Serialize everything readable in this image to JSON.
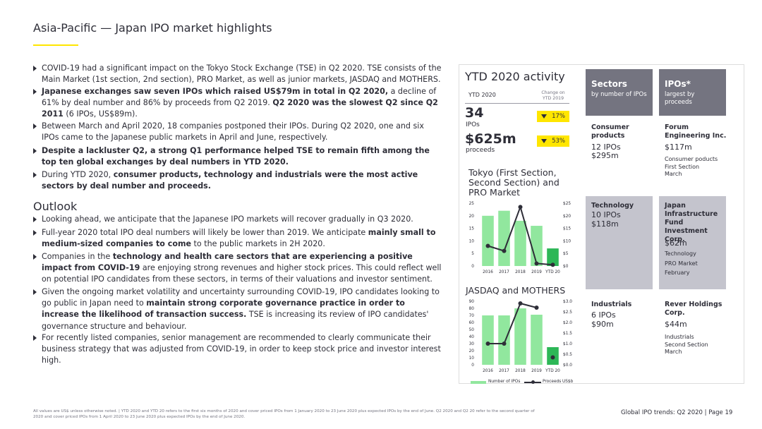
{
  "title": "Asia-Pacific — Japan IPO market highlights",
  "bullets": [
    [
      {
        "t": "COVID-19 had a significant impact on the Tokyo Stock Exchange (TSE) in Q2 2020. TSE consists of the Main Market (1st section, 2nd section), PRO Market, as well as junior markets, JASDAQ and MOTHERS.",
        "b": false
      }
    ],
    [
      {
        "t": "Japanese exchanges saw seven IPOs which raised US$79m in total in Q2 2020,",
        "b": true
      },
      {
        "t": " a decline of 61% by deal number and 86% by proceeds from Q2 2019. ",
        "b": false
      },
      {
        "t": "Q2 2020 was the slowest Q2 since Q2 2011",
        "b": true
      },
      {
        "t": " (6 IPOs, US$89m).",
        "b": false
      }
    ],
    [
      {
        "t": "Between March and April 2020, 18 companies postponed their IPOs. During Q2 2020, one and six IPOs came to the Japanese public markets in April and June, respectively.",
        "b": false
      }
    ],
    [
      {
        "t": "Despite a lackluster Q2, a strong Q1 performance helped TSE to remain fifth among the top ten global exchanges by deal numbers in YTD 2020.",
        "b": true
      }
    ],
    [
      {
        "t": "During YTD 2020, ",
        "b": false
      },
      {
        "t": "consumer products, technology and industrials were the most active sectors by deal number and proceeds.",
        "b": true
      }
    ]
  ],
  "outlook_title": "Outlook",
  "outlook": [
    [
      {
        "t": "Looking ahead, we anticipate that the Japanese IPO markets will recover gradually in Q3 2020.",
        "b": false
      }
    ],
    [
      {
        "t": "Full-year 2020 total IPO deal numbers will likely be lower than 2019. We anticipate ",
        "b": false
      },
      {
        "t": "mainly small to medium-sized companies to come",
        "b": true
      },
      {
        "t": " to the public markets in 2H 2020.",
        "b": false
      }
    ],
    [
      {
        "t": "Companies in the ",
        "b": false
      },
      {
        "t": "technology and health care sectors that are experiencing a positive impact from COVID-19",
        "b": true
      },
      {
        "t": " are enjoying strong revenues and higher stock prices. This could reflect well on potential IPO candidates from these sectors,  in terms of their valuations and investor sentiment.",
        "b": false
      }
    ],
    [
      {
        "t": "Given the ongoing market volatility and uncertainty surrounding COVID-19, IPO candidates looking to go public in Japan need to ",
        "b": false
      },
      {
        "t": "maintain strong corporate governance practice in order to increase the likelihood of transaction success.",
        "b": true
      },
      {
        "t": " TSE is increasing its review of IPO candidates' governance structure and behaviour.",
        "b": false
      }
    ],
    [
      {
        "t": "For recently listed companies, senior management are recommended to clearly communicate their business strategy that was adjusted from COVID-19, in order to keep stock price and investor interest high.",
        "b": false
      }
    ]
  ],
  "ytd": {
    "title": "YTD 2020 activity",
    "label": "YTD 2020",
    "change_label": "Change on YTD 2019",
    "ipos_value": "34",
    "ipos_unit": "IPOs",
    "ipos_change": "17%",
    "proceeds_value": "$625m",
    "proceeds_unit": "proceeds",
    "proceeds_change": "53%"
  },
  "chart_data": [
    {
      "type": "bar",
      "title": "Tokyo (First Section, Second Section) and PRO Market",
      "categories": [
        "2016",
        "2017",
        "2018",
        "2019",
        "YTD 20"
      ],
      "series": [
        {
          "name": "Number of IPOs",
          "type": "bar",
          "axis": "left",
          "values": [
            20,
            22,
            18,
            16,
            7
          ]
        },
        {
          "name": "Proceeds US$b",
          "type": "line",
          "axis": "right",
          "values": [
            8,
            6,
            23.5,
            1,
            0.5
          ]
        }
      ],
      "y_left": {
        "ticks": [
          "0",
          "5",
          "10",
          "15",
          "20",
          "25"
        ],
        "range": [
          0,
          25
        ]
      },
      "y_right": {
        "ticks": [
          "$0",
          "$5",
          "$10",
          "$15",
          "$20",
          "$25"
        ],
        "range": [
          0,
          25
        ]
      }
    },
    {
      "type": "bar",
      "title": "JASDAQ and MOTHERS",
      "categories": [
        "2016",
        "2017",
        "2018",
        "2019",
        "YTD 20"
      ],
      "series": [
        {
          "name": "Number of IPOs",
          "type": "bar",
          "axis": "left",
          "values": [
            70,
            70,
            80,
            71,
            25
          ]
        },
        {
          "name": "Proceeds US$b",
          "type": "line",
          "axis": "right",
          "values": [
            1,
            1,
            2.9,
            2.7,
            0.35
          ]
        }
      ],
      "y_left": {
        "ticks": [
          "0",
          "10",
          "20",
          "30",
          "40",
          "50",
          "60",
          "70",
          "80",
          "90"
        ],
        "range": [
          0,
          90
        ]
      },
      "y_right": {
        "ticks": [
          "$0.0",
          "$0.5",
          "$1.0",
          "$1.5",
          "$2.0",
          "$2.5",
          "$3.0"
        ],
        "range": [
          0,
          3
        ]
      }
    }
  ],
  "legend": {
    "bar": "Number of IPOs",
    "line": "Proceeds US$b"
  },
  "colors": {
    "bar": "#91e79e",
    "bar_ytd": "#2db757",
    "line": "#2e2e38",
    "accent": "#ffe600",
    "header": "#747480",
    "gray_cell": "#c4c4cd"
  },
  "sectors": {
    "header_title": "Sectors",
    "header_sub": "by number of IPOs",
    "rows": [
      {
        "name": "Consumer products",
        "ipos": "12 IPOs",
        "proceeds": "$295m"
      },
      {
        "name": "Technology",
        "ipos": "10 IPOs",
        "proceeds": "$118m"
      },
      {
        "name": "Industrials",
        "ipos": "6 IPOs",
        "proceeds": "$90m"
      }
    ]
  },
  "ipos": {
    "header_title": "IPOs*",
    "header_sub": "largest by proceeds",
    "rows": [
      {
        "name": "Forum Engineering Inc.",
        "proceeds": "$117m",
        "details": [
          "Consumer poducts",
          "First Section",
          "March"
        ]
      },
      {
        "name": "Japan Infrastructure Fund Investment Corp.",
        "proceeds": "$62m",
        "details": [
          "Technology",
          "PRO Market",
          "February"
        ]
      },
      {
        "name": "Rever Holdings Corp.",
        "proceeds": "$44m",
        "details": [
          "Industrials",
          "Second Section",
          "March"
        ]
      }
    ]
  },
  "footer": "All values are US$ unless otherwise noted. | YTD 2020 and YTD 20 refers to the first six months of 2020 and cover priced IPOs from 1 January 2020 to 23 June 2020 plus expected IPOs by the end of June. Q2 2020 and Q2 20 refer to the second quarter of 2020 and cover priced IPOs from 1 April 2020 to 23 June 2020 plus expected IPOs by the end of June 2020.",
  "page_label": "Global IPO trends: Q2 2020  |  Page 19"
}
